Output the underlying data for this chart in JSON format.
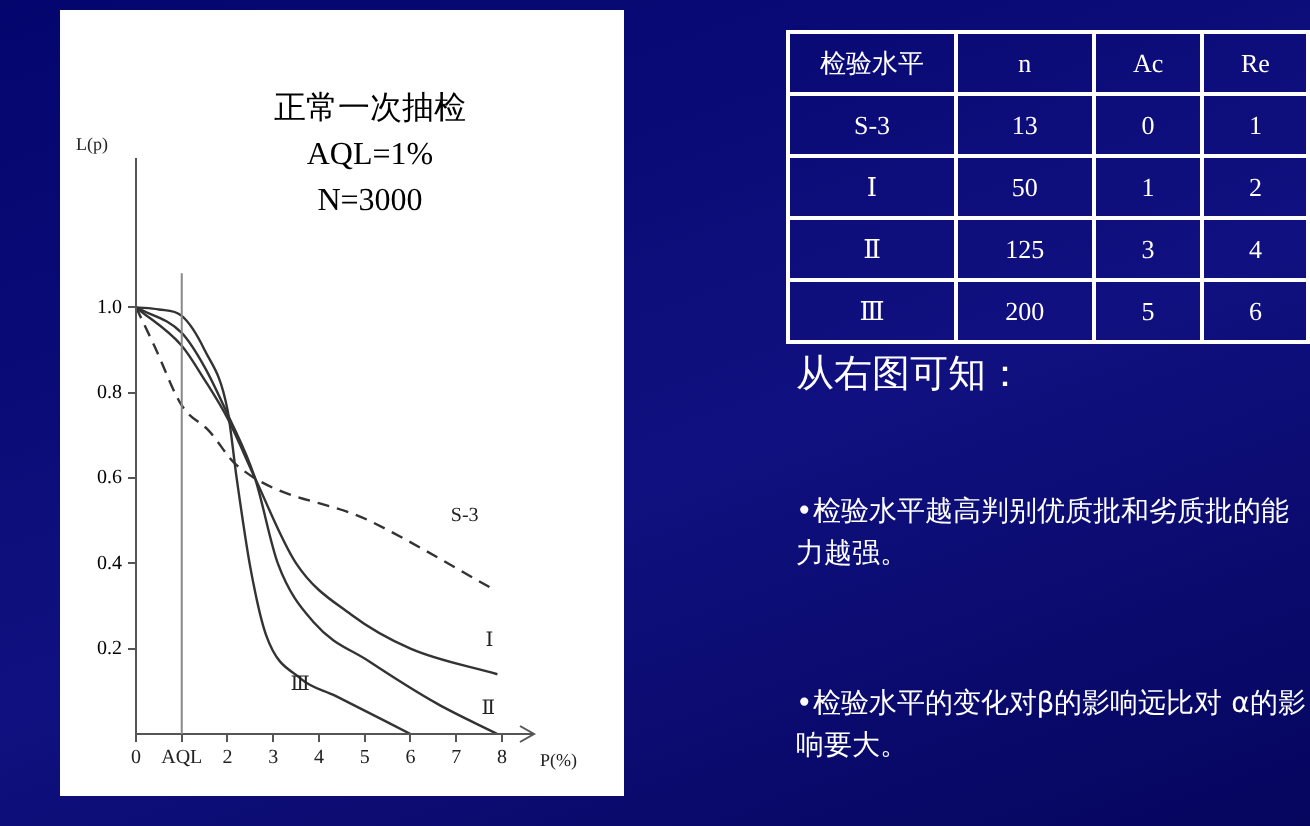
{
  "chart_data": [
    {
      "type": "line",
      "title": "正常一次抽检",
      "subtitle": "AQL=1%\nN=3000",
      "xlabel": "P(%)",
      "ylabel": "L(p)",
      "xlim": [
        0,
        8.7
      ],
      "ylim": [
        0,
        1.35
      ],
      "xticks": [
        0,
        {
          "value": 1,
          "label": "AQL"
        },
        2,
        3,
        4,
        5,
        6,
        7,
        8
      ],
      "yticks": [
        0.2,
        0.4,
        0.6,
        0.8,
        {
          "value": 1,
          "label": "1.0"
        }
      ],
      "grid": false,
      "marker": "none",
      "ref_lines": [
        {
          "axis": "x",
          "value": 1,
          "color": "#888888"
        }
      ],
      "series": [
        {
          "name": "S-3",
          "color": "#333333",
          "line_style": "dashed",
          "x": [
            0,
            0.4,
            1,
            1.6,
            2.2,
            5.1,
            7.8
          ],
          "values": [
            1,
            0.91,
            0.77,
            0.71,
            0.63,
            0.5,
            0.34
          ]
        },
        {
          "name": "Ⅰ",
          "color": "#333333",
          "line_style": "solid",
          "x": [
            0,
            1,
            1.5,
            2,
            2.6,
            3.5,
            4.7,
            6,
            7.9
          ],
          "values": [
            1,
            0.91,
            0.83,
            0.74,
            0.6,
            0.4,
            0.28,
            0.2,
            0.14
          ]
        },
        {
          "name": "Ⅱ",
          "color": "#333333",
          "line_style": "solid",
          "x": [
            0,
            1,
            1.5,
            2,
            2.6,
            3.1,
            3.9,
            5.1,
            6.6,
            7.9
          ],
          "values": [
            1,
            0.94,
            0.86,
            0.75,
            0.6,
            0.4,
            0.26,
            0.17,
            0.07,
            0
          ]
        },
        {
          "name": "Ⅲ",
          "color": "#333333",
          "line_style": "solid",
          "x": [
            0,
            0.5,
            1,
            1.5,
            2,
            2.2,
            2.5,
            2.85,
            3.6,
            4.35,
            6
          ],
          "values": [
            1,
            0.995,
            0.98,
            0.9,
            0.76,
            0.6,
            0.39,
            0.23,
            0.13,
            0.09,
            0
          ]
        }
      ]
    },
    {
      "type": "other",
      "ylabel": "检验水平",
      "categories": [
        "n",
        "Ac",
        "Re"
      ],
      "y_categories": [
        "S-3",
        "Ⅰ",
        "Ⅱ",
        "Ⅲ"
      ],
      "cell_labels": [
        [
          "13",
          "0",
          "1"
        ],
        [
          "50",
          "1",
          "2"
        ],
        [
          "125",
          "3",
          "4"
        ],
        [
          "200",
          "5",
          "6"
        ]
      ]
    },
    {
      "type": "other",
      "title": "从右图可知：",
      "annotations": [
        "•检验水平越高判别优质批和劣质批的能力越强。",
        "•检验水平的变化对β的影响远比对 α的影响要大。"
      ]
    }
  ]
}
